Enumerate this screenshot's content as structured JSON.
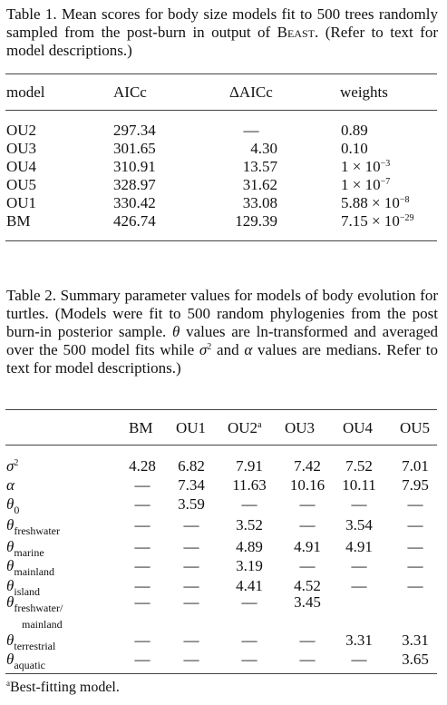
{
  "table1": {
    "caption_lead": "Table 1. Mean scores for body size models fit to 500 trees randomly sampled from the post-burn in output of ",
    "caption_program": "Beast.",
    "caption_tail": " (Refer to text for model descriptions.)",
    "headers": [
      "model",
      "AICc",
      "ΔAICc",
      "weights"
    ],
    "rows": [
      {
        "model": "OU2",
        "aicc": "297.34",
        "daicc": "—",
        "w_mant": "0.89",
        "w_exp": ""
      },
      {
        "model": "OU3",
        "aicc": "301.65",
        "daicc": "4.30",
        "w_mant": "0.10",
        "w_exp": ""
      },
      {
        "model": "OU4",
        "aicc": "310.91",
        "daicc": "13.57",
        "w_mant": "1 × 10",
        "w_exp": "−3"
      },
      {
        "model": "OU5",
        "aicc": "328.97",
        "daicc": "31.62",
        "w_mant": "1 × 10",
        "w_exp": "−7"
      },
      {
        "model": "OU1",
        "aicc": "330.42",
        "daicc": "33.08",
        "w_mant": "5.88 × 10",
        "w_exp": "−8"
      },
      {
        "model": "BM",
        "aicc": "426.74",
        "daicc": "129.39",
        "w_mant": "7.15 × 10",
        "w_exp": "−29"
      }
    ]
  },
  "table2": {
    "caption_a": "Table 2. Summary parameter values for models of body evolution for turtles. (Models were fit to 500 random phylogenies from the post burn-in posterior sample. ",
    "caption_theta": "θ",
    "caption_b": " values are ln-transformed and averaged over the 500 model fits while ",
    "caption_sigma": "σ",
    "caption_sigma_exp": "2",
    "caption_c": " and ",
    "caption_alpha": "α",
    "caption_d": " values are medians. Refer to text for model descriptions.)",
    "header_models": [
      "BM",
      "OU1",
      "OU2",
      "OU3",
      "OU4",
      "OU5"
    ],
    "header_note_mark": "a",
    "rows": [
      {
        "sym": "σ",
        "sup": "2",
        "sub": "",
        "vals": [
          "4.28",
          "6.82",
          "7.91",
          "7.42",
          "7.52",
          "7.01"
        ]
      },
      {
        "sym": "α",
        "sup": "",
        "sub": "",
        "vals": [
          "—",
          "7.34",
          "11.63",
          "10.16",
          "10.11",
          "7.95"
        ]
      },
      {
        "sym": "θ",
        "sup": "",
        "sub": "0",
        "vals": [
          "—",
          "3.59",
          "—",
          "—",
          "—",
          "—"
        ]
      },
      {
        "sym": "θ",
        "sup": "",
        "sub": "freshwater",
        "vals": [
          "—",
          "—",
          "3.52",
          "—",
          "3.54",
          "—"
        ]
      },
      {
        "sym": "θ",
        "sup": "",
        "sub": "marine",
        "vals": [
          "—",
          "—",
          "4.89",
          "4.91",
          "4.91",
          "—"
        ]
      },
      {
        "sym": "θ",
        "sup": "",
        "sub": "mainland",
        "vals": [
          "—",
          "—",
          "3.19",
          "—",
          "—",
          "—"
        ]
      },
      {
        "sym": "θ",
        "sup": "",
        "sub": "island",
        "vals": [
          "—",
          "—",
          "4.41",
          "4.52",
          "—",
          "—"
        ]
      },
      {
        "sym": "θ",
        "sup": "",
        "sub": "freshwater/",
        "sub2": "mainland",
        "vals": [
          "—",
          "—",
          "—",
          "3.45",
          "",
          ""
        ]
      },
      {
        "sym": "θ",
        "sup": "",
        "sub": "terrestrial",
        "vals": [
          "—",
          "—",
          "—",
          "—",
          "3.31",
          "3.31"
        ]
      },
      {
        "sym": "θ",
        "sup": "",
        "sub": "aquatic",
        "vals": [
          "—",
          "—",
          "—",
          "—",
          "—",
          "3.65"
        ]
      }
    ],
    "footnote_mark": "a",
    "footnote_text": "Best-fitting model."
  }
}
